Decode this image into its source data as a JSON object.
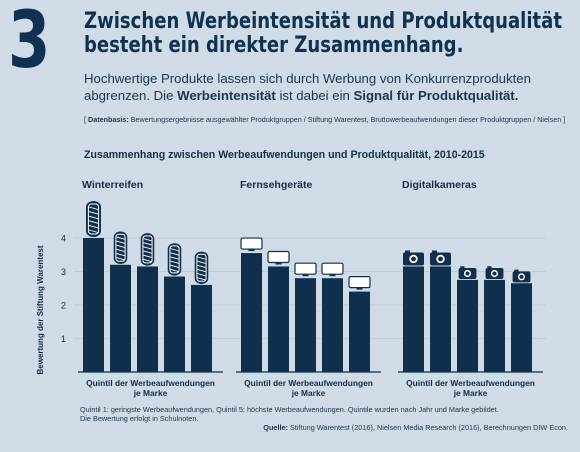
{
  "header": {
    "number": "3",
    "headline_line1": "Zwischen Werbeintensität und Produktqualität",
    "headline_line2": "besteht ein direkter Zusammenhang.",
    "subtitle_part1": "Hochwertige Produkte lassen sich durch Werbung von Konkurrenzprodukten abgrenzen. Die ",
    "subtitle_bold1": "Werbeintensität",
    "subtitle_part2": " ist dabei ein ",
    "subtitle_bold2": "Signal für Produktqualität.",
    "datasource_label": "Datenbasis:",
    "datasource_text": " Bewertungsergebnisse ausgewählter Produktgruppen / Stiftung Warentest, Bruttowerbeaufwendungen dieser Produktgruppen / Nielsen ]",
    "datasource_open": "[ "
  },
  "footnote": {
    "line1": "Quintil 1: geringste Werbeaufwendungen, Quintil 5: höchste Werbeaufwendungen. Quintile wurden nach Jahr und Marke gebildet.",
    "line2": "Die Bewertung erfolgt in Schulnoten."
  },
  "source": {
    "label": "Quelle:",
    "text": " Stiftung Warentest (2016), Nielsen Media Research (2016), Berechnungen DIW Econ."
  },
  "colors": {
    "bar": "#0f2f4d",
    "background": "#cfdbe6",
    "gridline": "#b9c8d6"
  },
  "chart_data": {
    "type": "bar",
    "title": "Zusammenhang zwischen Werbeaufwendungen und Produktqualität, 2010-2015",
    "ylabel": "Bewertung der Stiftung Warentest",
    "ylim": [
      0,
      4
    ],
    "yticks": [
      1,
      2,
      3,
      4
    ],
    "grid": true,
    "panels": [
      {
        "name": "Winterreifen",
        "icon": "tire-icon",
        "xlabel_line1": "Quintil der Werbeaufwendungen",
        "xlabel_line2": "je Marke",
        "values": [
          4.0,
          3.2,
          3.15,
          2.85,
          2.6
        ]
      },
      {
        "name": "Fernsehgeräte",
        "icon": "tv-icon",
        "xlabel_line1": "Quintil der Werbeaufwendungen",
        "xlabel_line2": "je Marke",
        "values": [
          3.55,
          3.15,
          2.8,
          2.8,
          2.4
        ]
      },
      {
        "name": "Digitalkameras",
        "icon": "camera-icon",
        "xlabel_line1": "Quintil der Werbeaufwendungen",
        "xlabel_line2": "je Marke",
        "values": [
          3.15,
          3.15,
          2.75,
          2.75,
          2.65
        ]
      }
    ]
  }
}
